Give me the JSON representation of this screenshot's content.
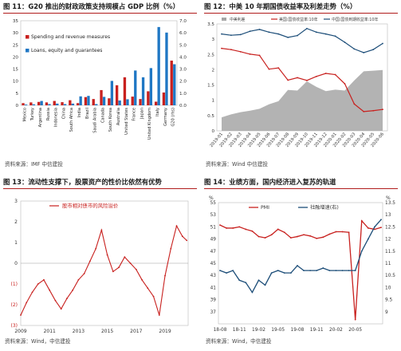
{
  "figures": [
    {
      "title": "图 11：G20 推出的财政政策支持规模占 GDP 比例（%）",
      "source": "资料来源：IMF  中信建投"
    },
    {
      "title": "图 12：中美 10 年期国债收益率及利差走势（%）",
      "source": "资料来源：Wind  中信建投"
    },
    {
      "title": "图 13：流动性支撑下，股票资产的性价比依然有优势",
      "source": "资料来源：Wind，中信建投"
    },
    {
      "title": "图 14：业绩方面，国内经济进入复苏的轨道",
      "source": "资料来源：Wind，中信建投"
    }
  ],
  "colors": {
    "red": "#c8201e",
    "blue": "#1f77c4",
    "navy": "#1d4e79",
    "gray": "#a6a6a6",
    "rule": "#b01c1c"
  },
  "chart_data": [
    {
      "type": "bar",
      "categories": [
        "Mexico",
        "Turkey",
        "Argentina",
        "Russia",
        "Indonesia",
        "China",
        "South Africa",
        "India",
        "Brazil",
        "Saudi Arabia",
        "Canada",
        "South Korea",
        "Australia",
        "United States",
        "France",
        "Japan",
        "United Kingdom",
        "Italy",
        "Germany",
        "G20 (rhs)"
      ],
      "series": [
        {
          "name": "Spending and revenue measures",
          "color": "#c8201e",
          "values": [
            0.9,
            1.2,
            1.4,
            1.2,
            1.8,
            1.3,
            2.1,
            0.9,
            3.4,
            2.6,
            6.3,
            2.9,
            8.3,
            11.6,
            3.6,
            2.6,
            5.8,
            1.5,
            5.3,
            3.7
          ]
        },
        {
          "name": "Loans, equity and guarantees",
          "color": "#1f77c4",
          "values": [
            0.3,
            0.4,
            1.8,
            0.5,
            0.7,
            0.5,
            0.7,
            3.7,
            3.9,
            0.5,
            3.5,
            10.1,
            2.0,
            2.5,
            14.4,
            11.6,
            15.4,
            32.4,
            30.1,
            3.4
          ]
        }
      ],
      "ylim_left": [
        0,
        35
      ],
      "yticks_left": [
        0,
        5,
        10,
        15,
        20,
        25,
        30,
        35
      ],
      "ylim_right": [
        0,
        7
      ],
      "yticks_right": [
        "0.0",
        "1.0",
        "2.0",
        "3.0",
        "4.0",
        "5.0",
        "6.0",
        "7.0"
      ],
      "legend_position": "top-left"
    },
    {
      "type": "line",
      "x_ticks": [
        "2019-01",
        "2019-02",
        "2019-03",
        "2019-04",
        "2019-05",
        "2019-06",
        "2019-07",
        "2019-08",
        "2019-09",
        "2019-10",
        "2019-11",
        "2019-12",
        "2020-01",
        "2020-02",
        "2020-03",
        "2020-04",
        "2020-05",
        "2020-06"
      ],
      "series": [
        {
          "name": "中美利差",
          "kind": "area",
          "color": "#a6a6a6",
          "values": [
            0.44,
            0.54,
            0.61,
            0.66,
            0.72,
            0.87,
            0.97,
            1.34,
            1.32,
            1.62,
            1.44,
            1.3,
            1.35,
            1.32,
            1.65,
            1.95,
            1.97,
            1.99
          ]
        },
        {
          "name": "美国:国债收益率:10年",
          "color": "#c8201e",
          "values": [
            2.7,
            2.66,
            2.59,
            2.51,
            2.47,
            2.02,
            2.06,
            1.66,
            1.74,
            1.65,
            1.78,
            1.88,
            1.84,
            1.54,
            0.88,
            0.63,
            0.66,
            0.7
          ]
        },
        {
          "name": "中国:国债到期收益率:10年",
          "color": "#1d4e79",
          "values": [
            3.17,
            3.13,
            3.15,
            3.26,
            3.32,
            3.23,
            3.17,
            3.06,
            3.12,
            3.35,
            3.23,
            3.17,
            3.1,
            2.9,
            2.68,
            2.56,
            2.66,
            2.86
          ]
        }
      ],
      "ylim": [
        0,
        3.5
      ],
      "yticks": [
        "0",
        "0.5",
        "1",
        "1.5",
        "2",
        "2.5",
        "3",
        "3.5"
      ],
      "legend_position": "top"
    },
    {
      "type": "line",
      "series": [
        {
          "name": "股市相对债市的风险溢价",
          "color": "#c8201e",
          "x": [
            2009.0,
            2009.4,
            2009.8,
            2010.2,
            2010.6,
            2011.0,
            2011.4,
            2011.8,
            2012.2,
            2012.6,
            2013.0,
            2013.4,
            2013.8,
            2014.2,
            2014.6,
            2015.0,
            2015.4,
            2015.8,
            2016.2,
            2016.6,
            2017.0,
            2017.4,
            2017.8,
            2018.2,
            2018.6,
            2019.0,
            2019.4,
            2019.8,
            2020.2,
            2020.5
          ],
          "values": [
            -2.5,
            -1.9,
            -1.4,
            -1.0,
            -0.8,
            -1.3,
            -1.8,
            -2.2,
            -1.7,
            -1.3,
            -0.8,
            -0.5,
            0.1,
            0.7,
            1.6,
            0.4,
            -0.4,
            -0.2,
            0.3,
            0.0,
            -0.3,
            -0.8,
            -1.2,
            -1.6,
            -2.5,
            -0.6,
            0.7,
            1.8,
            1.3,
            1.1
          ]
        }
      ],
      "x_ticks": [
        "2009",
        "2011",
        "2013",
        "2015",
        "2017",
        "2019"
      ],
      "yticks": [
        "3",
        "2",
        "1",
        "0",
        "(1)",
        "(2)",
        "(3)"
      ],
      "ylim": [
        -3,
        3
      ],
      "legend_position": "top-left"
    },
    {
      "type": "line",
      "x_ticks": [
        "18-08",
        "18-11",
        "19-02",
        "19-05",
        "19-08",
        "19-11",
        "20-02",
        "20-05"
      ],
      "series": [
        {
          "name": "PMI",
          "color": "#c8201e",
          "axis": "left",
          "values": [
            51.3,
            50.8,
            50.8,
            51.0,
            50.6,
            50.3,
            49.4,
            49.2,
            49.7,
            50.6,
            50.1,
            49.2,
            49.4,
            49.7,
            49.5,
            49.1,
            49.3,
            49.8,
            50.2,
            50.2,
            50.1,
            35.7,
            52.0,
            50.8,
            50.6,
            50.9
          ]
        },
        {
          "name": "社融增速(右)",
          "color": "#1d4e79",
          "axis": "right",
          "values": [
            10.7,
            10.6,
            10.7,
            10.3,
            10.2,
            9.8,
            10.3,
            10.1,
            10.6,
            10.7,
            10.6,
            10.6,
            10.9,
            10.7,
            10.7,
            10.7,
            10.8,
            10.7,
            10.7,
            10.7,
            10.7,
            10.7,
            11.5,
            12.0,
            12.5,
            12.8
          ]
        }
      ],
      "yticks_left": [
        "37",
        "39",
        "41",
        "43",
        "45",
        "47",
        "49",
        "51",
        "53",
        "55"
      ],
      "ylim_left": [
        35,
        55
      ],
      "yticks_right": [
        "9",
        "9.5",
        "10",
        "10.5",
        "11",
        "11.5",
        "12",
        "12.5",
        "13",
        "13.5"
      ],
      "ylim_right": [
        8.5,
        13.5
      ],
      "left_unit": "%",
      "right_unit": "%",
      "legend_position": "top"
    }
  ]
}
